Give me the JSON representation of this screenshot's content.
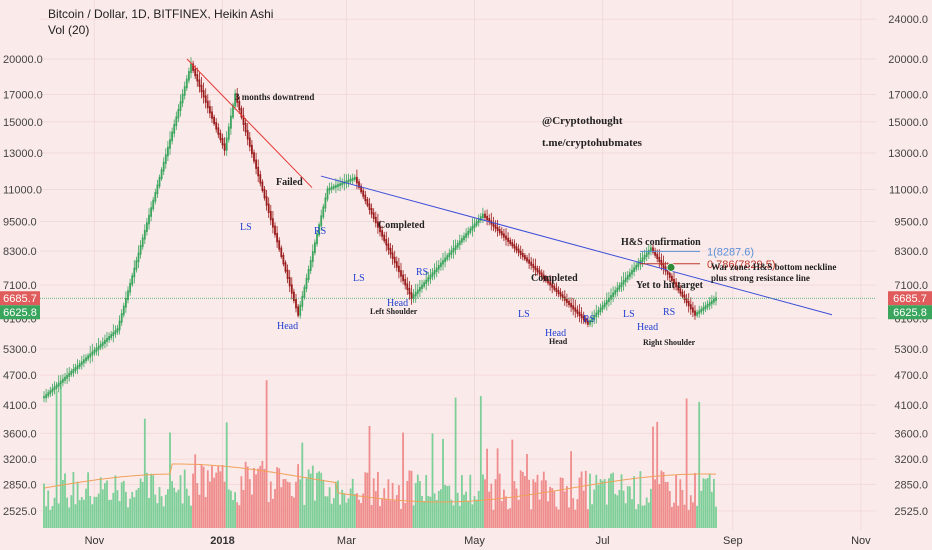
{
  "header": {
    "title": "Bitcoin / Dollar, 1D, BITFINEX, Heikin Ashi",
    "volume_label": "Vol (20)"
  },
  "chart_data": {
    "type": "candlestick",
    "y_axis_labels_left": [
      "20000.0",
      "17000.0",
      "15000.0",
      "13000.0",
      "11000.0",
      "9500.0",
      "8300.0",
      "7100.0",
      "6100.0",
      "5300.0",
      "4700.0",
      "4100.0",
      "3600.0",
      "3200.0",
      "2850.0",
      "2525.0"
    ],
    "y_axis_labels_right": [
      "24000.0",
      "20000.0",
      "17000.0",
      "15000.0",
      "13000.0",
      "11000.0",
      "9500.0",
      "8300.0",
      "7100.0",
      "6100.0",
      "5300.0",
      "4700.0",
      "4100.0",
      "3600.0",
      "3200.0",
      "2850.0",
      "2525.0"
    ],
    "x_axis_labels": [
      "Nov",
      "2018",
      "Mar",
      "May",
      "Jul",
      "Sep",
      "Nov"
    ],
    "price_badges": [
      {
        "value": "6685.7",
        "color": "#e05b5b"
      },
      {
        "value": "6625.8",
        "color": "#3aa55c"
      }
    ],
    "key_prices": [
      {
        "date": "2017-10-08",
        "price": 4250
      },
      {
        "date": "2017-11-12",
        "price": 5800
      },
      {
        "date": "2017-12-17",
        "price": 19500
      },
      {
        "date": "2018-01-02",
        "price": 13200
      },
      {
        "date": "2018-01-07",
        "price": 17000
      },
      {
        "date": "2018-02-06",
        "price": 6200
      },
      {
        "date": "2018-02-20",
        "price": 11000
      },
      {
        "date": "2018-03-05",
        "price": 11600
      },
      {
        "date": "2018-04-01",
        "price": 6700
      },
      {
        "date": "2018-05-05",
        "price": 9800
      },
      {
        "date": "2018-06-24",
        "price": 5950
      },
      {
        "date": "2018-07-24",
        "price": 8400
      },
      {
        "date": "2018-08-14",
        "price": 6200
      },
      {
        "date": "2018-08-24",
        "price": 6685
      }
    ],
    "fib_levels": [
      {
        "label": "1(8287.6)",
        "color": "#5b8fd8"
      },
      {
        "label": "0.786(7829.5)",
        "color": "#c0392b"
      }
    ],
    "annotations": {
      "downtrend": "3 months downtrend",
      "failed": "Failed",
      "completed_1": "Completed",
      "completed_2": "Completed",
      "hs_confirmation": "H&S confirmation",
      "war_zone_1": "War zone: H&S bottom neckline",
      "war_zone_2": "plus strong resistance line",
      "yet_to_hit": "Yet to hit target",
      "handle": "@Cryptothought",
      "telegram": "t.me/cryptohubmates",
      "left_shoulder": "Left Shoulder",
      "head_small": "Head",
      "right_shoulder": "Right Shoulder",
      "ls": "LS",
      "rs": "RS",
      "head": "Head"
    },
    "colors": {
      "up": "#3aa55c",
      "down": "#9b1c1c",
      "background": "#fbeaea",
      "trendline_red": "#e53935",
      "trendline_blue": "#3b4fd8"
    }
  }
}
